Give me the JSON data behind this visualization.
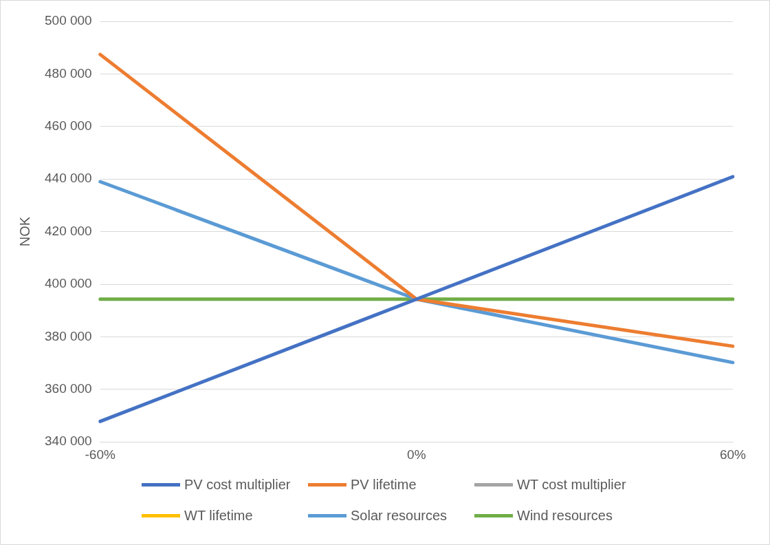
{
  "chart_data": {
    "type": "line",
    "ylabel": "NOK",
    "categories": [
      "-60%",
      "0%",
      "60%"
    ],
    "series": [
      {
        "name": "PV cost multiplier",
        "color": "#4472c4",
        "values": [
          347800,
          394300,
          440900
        ]
      },
      {
        "name": "PV lifetime",
        "color": "#ed7d31",
        "values": [
          487400,
          394300,
          376400
        ]
      },
      {
        "name": "WT cost multiplier",
        "color": "#a5a5a5",
        "values": [
          null,
          null,
          null
        ]
      },
      {
        "name": "WT lifetime",
        "color": "#ffc000",
        "values": [
          null,
          null,
          null
        ]
      },
      {
        "name": "Solar resources",
        "color": "#5b9bd5",
        "values": [
          439000,
          394300,
          370200
        ]
      },
      {
        "name": "Wind resources",
        "color": "#70ad47",
        "values": [
          394300,
          394300,
          394300
        ]
      }
    ],
    "ylim": [
      340000,
      500000
    ],
    "yticks": [
      {
        "value": 340000,
        "label": "340 000"
      },
      {
        "value": 360000,
        "label": "360 000"
      },
      {
        "value": 380000,
        "label": "380 000"
      },
      {
        "value": 400000,
        "label": "400 000"
      },
      {
        "value": 420000,
        "label": "420 000"
      },
      {
        "value": 440000,
        "label": "440 000"
      },
      {
        "value": 460000,
        "label": "460 000"
      },
      {
        "value": 480000,
        "label": "480 000"
      },
      {
        "value": 500000,
        "label": "500 000"
      }
    ],
    "grid": "y",
    "legend": "bottom",
    "marker": "none",
    "line_style": "solid"
  }
}
